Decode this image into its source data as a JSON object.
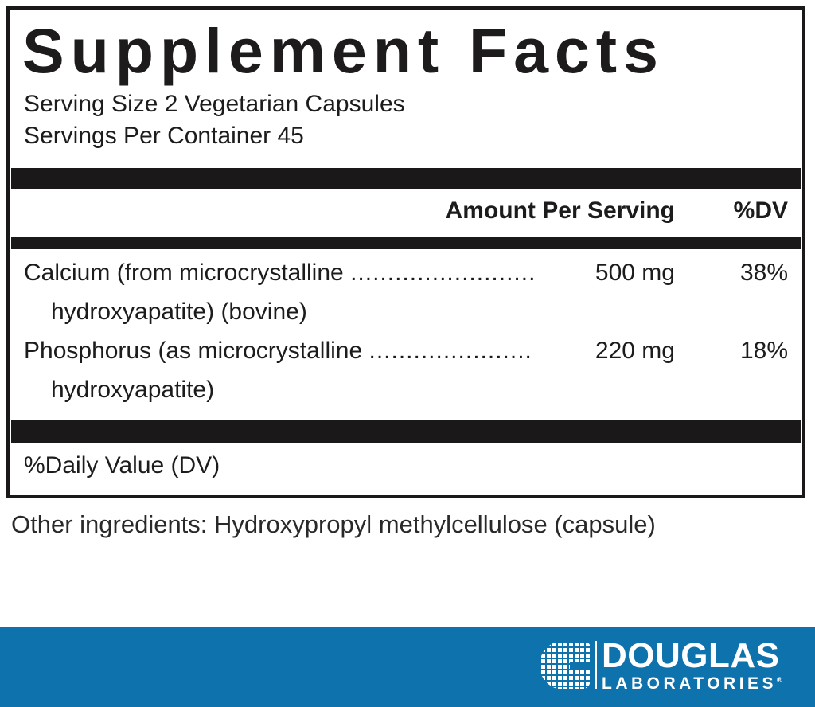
{
  "label": {
    "title": "Supplement Facts",
    "serving_size": "Serving Size 2 Vegetarian Capsules",
    "servings_per_container": "Servings Per Container 45",
    "columns": {
      "amount": "Amount Per Serving",
      "dv": "%DV"
    },
    "rows": [
      {
        "name": "Calcium (from microcrystalline",
        "dots": ".........................",
        "amount": "500 mg",
        "dv": "38%",
        "continuation": "hydroxyapatite) (bovine)"
      },
      {
        "name": "Phosphorus (as microcrystalline",
        "dots": "......................",
        "amount": "220 mg",
        "dv": "18%",
        "continuation": "hydroxyapatite)"
      }
    ],
    "footnote": "%Daily Value (DV)"
  },
  "other_ingredients": "Other ingredients: Hydroxypropyl methylcellulose (capsule)",
  "brand": {
    "name": "DOUGLAS",
    "sub": "LABORATORIES",
    "reg_mark": "®"
  },
  "colors": {
    "brand_blue": "#0e72ad",
    "ink": "#1d1b1c"
  }
}
